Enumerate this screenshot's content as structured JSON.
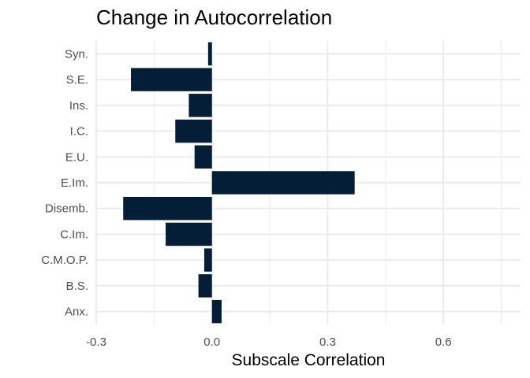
{
  "chart_data": {
    "type": "bar",
    "orientation": "horizontal",
    "title": "Change in Autocorrelation",
    "xlabel": "Subscale Correlation",
    "ylabel": "",
    "categories": [
      "Syn.",
      "S.E.",
      "Ins.",
      "I.C.",
      "E.U.",
      "E.Im.",
      "Disemb.",
      "C.Im.",
      "C.M.O.P.",
      "B.S.",
      "Anx."
    ],
    "values": [
      -0.01,
      -0.21,
      -0.06,
      -0.095,
      -0.045,
      0.37,
      -0.23,
      -0.12,
      -0.02,
      -0.035,
      0.025
    ],
    "xlim": [
      -0.3,
      0.8
    ],
    "xticks": [
      -0.3,
      0.0,
      0.3,
      0.6
    ],
    "xtick_labels": [
      "-0.3",
      "0.0",
      "0.3",
      "0.6"
    ],
    "grid": true,
    "bar_color": "#031E36"
  }
}
